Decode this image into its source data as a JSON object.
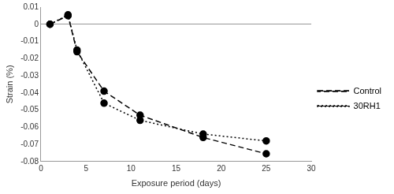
{
  "chart_data": {
    "type": "line",
    "x_label": "Exposure period (days)",
    "y_label": "Strain (%)",
    "xlim": [
      0,
      30
    ],
    "xticks": [
      0,
      5,
      10,
      15,
      20,
      25,
      30
    ],
    "ylim": [
      -0.08,
      0.01
    ],
    "yticks": [
      0.01,
      0,
      -0.01,
      -0.02,
      -0.03,
      -0.04,
      -0.05,
      -0.06,
      -0.07,
      -0.08
    ],
    "grid": false,
    "legend": "right",
    "series": [
      {
        "name": "Control",
        "color": "#000000",
        "marker": "circle",
        "line_style": "dashed",
        "x": [
          1,
          3,
          4,
          7,
          11,
          18,
          25
        ],
        "values": [
          0,
          0.005,
          -0.016,
          -0.039,
          -0.053,
          -0.066,
          -0.0755
        ]
      },
      {
        "name": "30RH1",
        "color": "#000000",
        "marker": "circle",
        "line_style": "dotted",
        "x": [
          1,
          3,
          4,
          7,
          11,
          18,
          25
        ],
        "values": [
          0,
          0.0055,
          -0.015,
          -0.046,
          -0.056,
          -0.064,
          -0.068
        ]
      }
    ]
  }
}
